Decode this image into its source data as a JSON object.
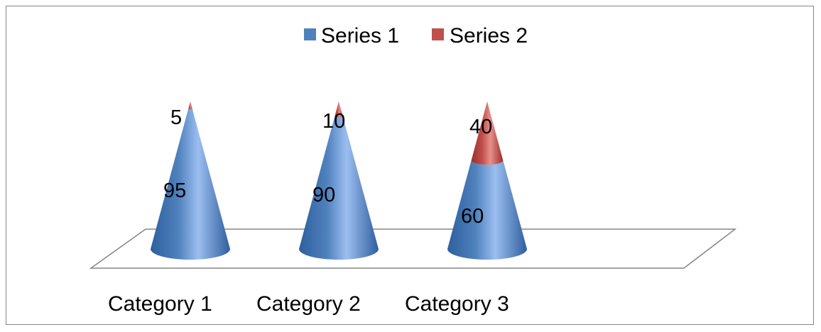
{
  "chart_data": {
    "type": "bar",
    "subtype": "stacked-cone-3d",
    "categories": [
      "Category 1",
      "Category 2",
      "Category 3"
    ],
    "series": [
      {
        "name": "Series 1",
        "values": [
          95,
          90,
          60
        ],
        "color": "#4f81bd"
      },
      {
        "name": "Series 2",
        "values": [
          5,
          10,
          40
        ],
        "color": "#c0504d"
      }
    ],
    "value_total": 100,
    "legend_position": "top",
    "grid": false
  },
  "colors": {
    "series1_light": "#9bbef0",
    "series1_dark": "#2f5f9e",
    "series2_light": "#e8908c",
    "series2_dark": "#9c2f2c",
    "floor_stroke": "#868686",
    "frame_border": "#868686"
  }
}
